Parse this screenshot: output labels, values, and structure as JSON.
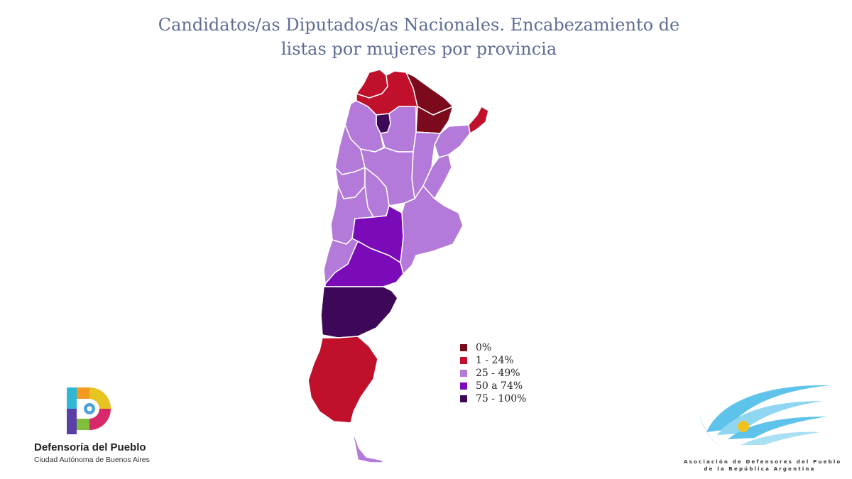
{
  "title": {
    "line1": "Candidatos/as Diputados/as Nacionales. Encabezamiento de",
    "line2": "listas por mujeres por provincia"
  },
  "legend": [
    {
      "label": "0%",
      "color": "#7a0a1c"
    },
    {
      "label": "1 - 24%",
      "color": "#c0102c"
    },
    {
      "label": "25 - 49%",
      "color": "#b37ad9"
    },
    {
      "label": "50 a 74%",
      "color": "#7b0bb8"
    },
    {
      "label": "75 - 100%",
      "color": "#3d0858"
    }
  ],
  "provinces": [
    {
      "name": "Jujuy",
      "category": "1 - 24%"
    },
    {
      "name": "Salta",
      "category": "1 - 24%"
    },
    {
      "name": "Formosa",
      "category": "0%"
    },
    {
      "name": "Chaco",
      "category": "0%"
    },
    {
      "name": "Misiones",
      "category": "1 - 24%"
    },
    {
      "name": "Tucumán",
      "category": "75 - 100%"
    },
    {
      "name": "Catamarca",
      "category": "25 - 49%"
    },
    {
      "name": "Santiago del Estero",
      "category": "25 - 49%"
    },
    {
      "name": "Corrientes",
      "category": "25 - 49%"
    },
    {
      "name": "Santa Fe",
      "category": "25 - 49%"
    },
    {
      "name": "Entre Ríos",
      "category": "25 - 49%"
    },
    {
      "name": "La Rioja",
      "category": "25 - 49%"
    },
    {
      "name": "San Juan",
      "category": "25 - 49%"
    },
    {
      "name": "Córdoba",
      "category": "25 - 49%"
    },
    {
      "name": "San Luis",
      "category": "25 - 49%"
    },
    {
      "name": "Mendoza",
      "category": "25 - 49%"
    },
    {
      "name": "Buenos Aires",
      "category": "25 - 49%"
    },
    {
      "name": "La Pampa",
      "category": "50 a 74%"
    },
    {
      "name": "Neuquén",
      "category": "25 - 49%"
    },
    {
      "name": "Río Negro",
      "category": "50 a 74%"
    },
    {
      "name": "Chubut",
      "category": "75 - 100%"
    },
    {
      "name": "Santa Cruz",
      "category": "1 - 24%"
    },
    {
      "name": "Tierra del Fuego",
      "category": "25 - 49%"
    }
  ],
  "logos": {
    "left_name": "Defensoría del Pueblo",
    "left_sub": "Ciudad Autónoma de Buenos Aires",
    "right_line1": "Asociación de Defensores del Pueblo",
    "right_line2": "de la República Argentina"
  },
  "colors": {
    "title": "#5f6d96",
    "border": "#ffffff"
  }
}
